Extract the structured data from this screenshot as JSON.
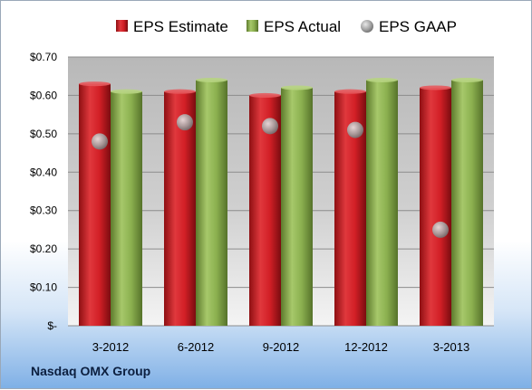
{
  "chart_data": {
    "type": "bar",
    "categories": [
      "3-2012",
      "6-2012",
      "9-2012",
      "12-2012",
      "3-2013"
    ],
    "series": [
      {
        "name": "EPS Estimate",
        "kind": "bar",
        "color": "#d21f26",
        "values": [
          0.63,
          0.61,
          0.6,
          0.61,
          0.62
        ]
      },
      {
        "name": "EPS Actual",
        "kind": "bar",
        "color": "#8bb04f",
        "values": [
          0.61,
          0.64,
          0.62,
          0.64,
          0.64
        ]
      },
      {
        "name": "EPS GAAP",
        "kind": "marker",
        "color": "#a3a3a3",
        "values": [
          0.48,
          0.53,
          0.52,
          0.51,
          0.25
        ]
      }
    ],
    "ylim": [
      0,
      0.7
    ],
    "yticks": [
      0,
      0.1,
      0.2,
      0.3,
      0.4,
      0.5,
      0.6,
      0.7
    ],
    "ytick_labels": [
      "$-",
      "$0.10",
      "$0.20",
      "$0.30",
      "$0.40",
      "$0.50",
      "$0.60",
      "$0.70"
    ],
    "legend_position": "top",
    "grid": true
  },
  "footer": {
    "company": "Nasdaq OMX Group"
  }
}
